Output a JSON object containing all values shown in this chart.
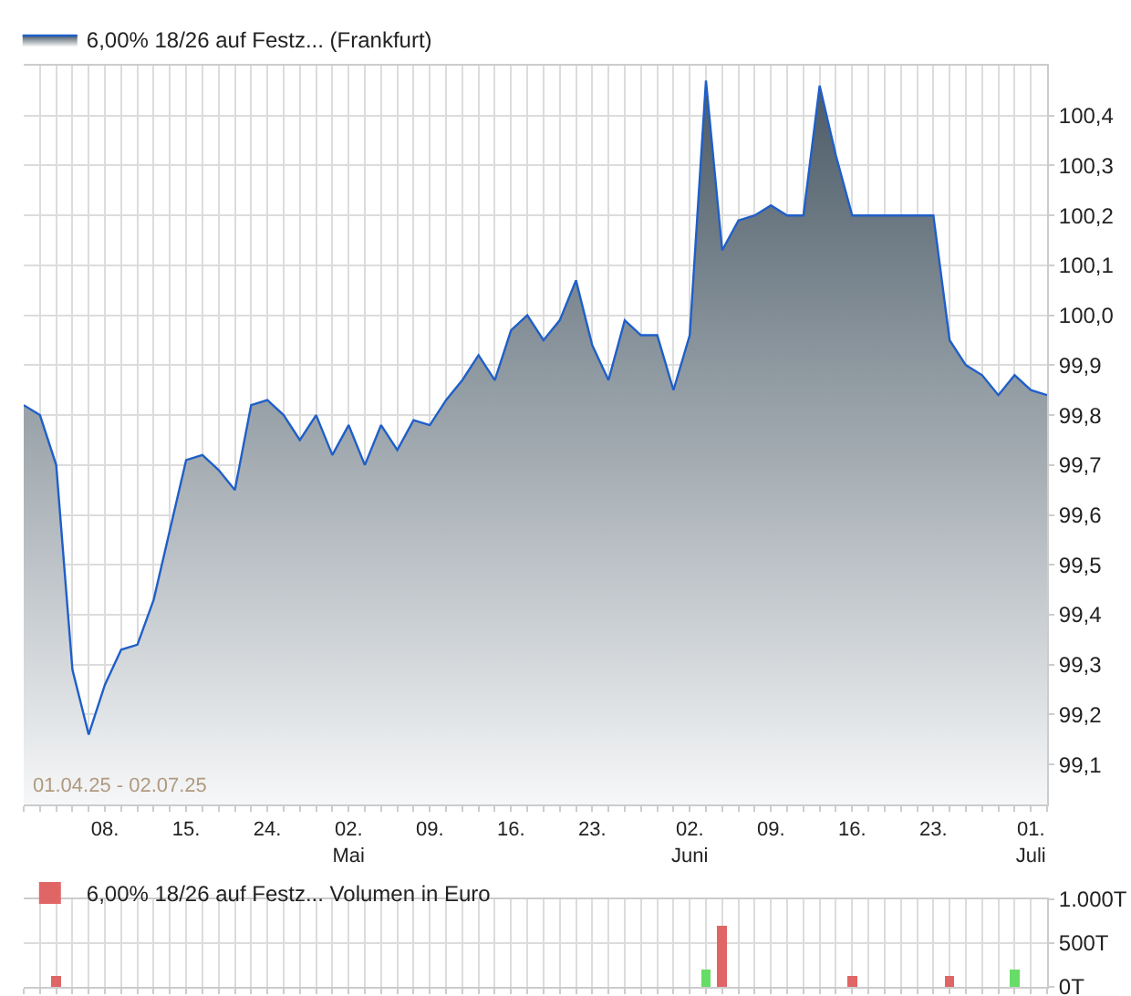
{
  "chart_data": [
    {
      "type": "area",
      "categories": [
        null,
        null,
        null,
        null,
        null,
        "08.",
        null,
        null,
        null,
        null,
        "15.",
        null,
        null,
        null,
        null,
        "24.",
        null,
        null,
        null,
        null,
        "02.\nMai",
        null,
        null,
        null,
        null,
        "09.",
        null,
        null,
        null,
        null,
        "16.",
        null,
        null,
        null,
        null,
        "23.",
        null,
        null,
        null,
        null,
        null,
        "02.\nJuni",
        null,
        null,
        null,
        null,
        "09.",
        null,
        null,
        null,
        null,
        "16.",
        null,
        null,
        null,
        null,
        "23.",
        null,
        null,
        null,
        null,
        null,
        "01.\nJuli",
        null
      ],
      "series": [
        {
          "name": "6,00% 18/26 auf Festz... (Frankfurt)",
          "color": "#1f5fc8",
          "values": [
            99.82,
            99.8,
            99.7,
            99.29,
            99.16,
            99.26,
            99.33,
            99.34,
            99.43,
            99.57,
            99.71,
            99.72,
            99.69,
            99.65,
            99.82,
            99.83,
            99.8,
            99.75,
            99.8,
            99.72,
            99.78,
            99.7,
            99.78,
            99.73,
            99.79,
            99.78,
            99.83,
            99.87,
            99.92,
            99.87,
            99.97,
            100.0,
            99.95,
            99.99,
            100.07,
            99.94,
            99.87,
            99.99,
            99.96,
            99.96,
            99.85,
            99.96,
            100.47,
            100.13,
            100.19,
            100.2,
            100.22,
            100.2,
            100.2,
            100.46,
            100.32,
            100.2,
            100.2,
            100.2,
            100.2,
            100.2,
            100.2,
            99.95,
            99.9,
            99.88,
            99.84,
            99.88,
            99.85,
            99.84
          ]
        }
      ],
      "ylim": [
        99.02,
        100.5
      ],
      "yticks": [
        {
          "value": 99.1,
          "label": "99,1"
        },
        {
          "value": 99.2,
          "label": "99,2"
        },
        {
          "value": 99.3,
          "label": "99,3"
        },
        {
          "value": 99.4,
          "label": "99,4"
        },
        {
          "value": 99.5,
          "label": "99,5"
        },
        {
          "value": 99.6,
          "label": "99,6"
        },
        {
          "value": 99.7,
          "label": "99,7"
        },
        {
          "value": 99.8,
          "label": "99,8"
        },
        {
          "value": 99.9,
          "label": "99,9"
        },
        {
          "value": 100.0,
          "label": "100,0"
        },
        {
          "value": 100.1,
          "label": "100,1"
        },
        {
          "value": 100.2,
          "label": "100,2"
        },
        {
          "value": 100.3,
          "label": "100,3"
        },
        {
          "value": 100.4,
          "label": "100,4"
        }
      ],
      "grid": true,
      "legend": "top left",
      "annotations": [
        "01.04.25 - 02.07.25"
      ]
    },
    {
      "type": "bar",
      "categories": [
        null,
        null,
        null,
        null,
        null,
        null,
        null,
        null,
        null,
        null,
        null,
        null,
        null,
        null,
        null,
        null,
        null,
        null,
        null,
        null,
        null,
        null,
        null,
        null,
        null,
        null,
        null,
        null,
        null,
        null,
        null,
        null,
        null,
        null,
        null,
        null,
        null,
        null,
        null,
        null,
        null,
        null,
        null,
        null,
        null,
        null,
        null,
        null,
        null,
        null,
        null,
        null,
        null,
        null,
        null,
        null,
        null,
        null,
        null,
        null,
        null,
        null,
        null,
        null
      ],
      "series": [
        {
          "name": "6,00% 18/26 auf Festz... Volumen in Euro",
          "color": "#e06666",
          "values": [
            null,
            null,
            120,
            null,
            null,
            null,
            null,
            null,
            null,
            null,
            null,
            null,
            null,
            null,
            null,
            null,
            null,
            null,
            null,
            null,
            null,
            null,
            null,
            null,
            null,
            null,
            null,
            null,
            null,
            null,
            null,
            null,
            null,
            null,
            null,
            null,
            null,
            null,
            null,
            null,
            null,
            null,
            200,
            700,
            null,
            null,
            null,
            null,
            null,
            null,
            null,
            120,
            null,
            null,
            null,
            null,
            null,
            120,
            null,
            null,
            null,
            200,
            null,
            null
          ],
          "colors": [
            null,
            null,
            "#e06666",
            null,
            null,
            null,
            null,
            null,
            null,
            null,
            null,
            null,
            null,
            null,
            null,
            null,
            null,
            null,
            null,
            null,
            null,
            null,
            null,
            null,
            null,
            null,
            null,
            null,
            null,
            null,
            null,
            null,
            null,
            null,
            null,
            null,
            null,
            null,
            null,
            null,
            null,
            null,
            "#66dd66",
            "#e06666",
            null,
            null,
            null,
            null,
            null,
            null,
            null,
            "#e06666",
            null,
            null,
            null,
            null,
            null,
            "#e06666",
            null,
            null,
            null,
            "#66dd66",
            null,
            null
          ]
        }
      ],
      "ylim": [
        0,
        1000
      ],
      "yticks": [
        {
          "value": 0,
          "label": "0T"
        },
        {
          "value": 500,
          "label": "500T"
        },
        {
          "value": 1000,
          "label": "1.000T"
        }
      ],
      "grid": true,
      "legend": "top left"
    }
  ]
}
